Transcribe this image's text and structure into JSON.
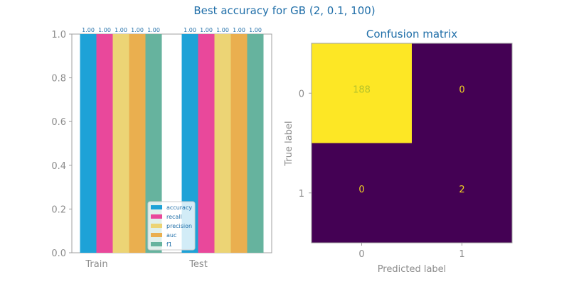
{
  "figure": {
    "suptitle": "Best accuracy for GB (2, 0.1, 100)"
  },
  "chart_data": [
    {
      "type": "bar",
      "title": "",
      "xlabel": "",
      "ylabel": "",
      "categories": [
        "Train",
        "Test"
      ],
      "ylim": [
        0,
        1
      ],
      "yticks": [
        "0.0",
        "0.2",
        "0.4",
        "0.6",
        "0.8",
        "1.0"
      ],
      "ytick_values": [
        0,
        0.2,
        0.4,
        0.6,
        0.8,
        1.0
      ],
      "grid": false,
      "legend": "bottom-right",
      "series": [
        {
          "name": "accuracy",
          "values": [
            1.0,
            1.0
          ],
          "labels": [
            "1.00",
            "1.00"
          ],
          "color": "#1ea2d7"
        },
        {
          "name": "recall",
          "values": [
            1.0,
            1.0
          ],
          "labels": [
            "1.00",
            "1.00"
          ],
          "color": "#e9489b"
        },
        {
          "name": "precision",
          "values": [
            1.0,
            1.0
          ],
          "labels": [
            "1.00",
            "1.00"
          ],
          "color": "#ecd475"
        },
        {
          "name": "auc",
          "values": [
            1.0,
            1.0
          ],
          "labels": [
            "1.00",
            "1.00"
          ],
          "color": "#eaaf4f"
        },
        {
          "name": "f1",
          "values": [
            1.0,
            1.0
          ],
          "labels": [
            "1.00",
            "1.00"
          ],
          "color": "#66b39e"
        }
      ]
    },
    {
      "type": "heatmap",
      "title": "Confusion matrix",
      "xlabel": "Predicted label",
      "ylabel": "True label",
      "x_categories": [
        "0",
        "1"
      ],
      "y_categories": [
        "0",
        "1"
      ],
      "values": [
        [
          188,
          0
        ],
        [
          0,
          2
        ]
      ],
      "cell_colors": [
        [
          "#fde725",
          "#440154"
        ],
        [
          "#440154",
          "#440154"
        ]
      ],
      "text_colors": [
        [
          "#b4c22a",
          "#f1d422"
        ],
        [
          "#f1d422",
          "#f1d422"
        ]
      ],
      "colormap": "viridis"
    }
  ]
}
